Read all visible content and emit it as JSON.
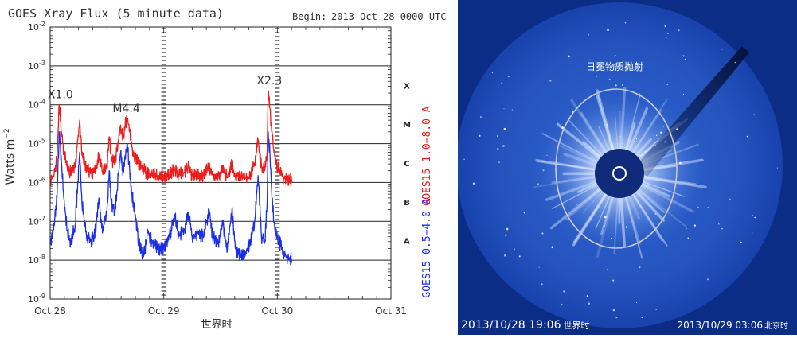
{
  "chart_data": [
    {
      "type": "line",
      "title": "GOES Xray Flux (5 minute data)",
      "begin_label": "Begin:",
      "begin_value": "2013 Oct 28 0000 UTC",
      "xlabel": "世界时",
      "ylabel": "Watts m",
      "ylabel_exponent": "−2",
      "yscale": "log",
      "ylim": [
        1e-09,
        0.01
      ],
      "xlim": [
        0,
        3
      ],
      "x_ticks": [
        {
          "value": 0,
          "label": "Oct 28"
        },
        {
          "value": 1,
          "label": "Oct 29"
        },
        {
          "value": 2,
          "label": "Oct 30"
        },
        {
          "value": 3,
          "label": "Oct 31"
        }
      ],
      "y_ticks": [
        {
          "exp": -9,
          "label": "10",
          "sup": "-9"
        },
        {
          "exp": -8,
          "label": "10",
          "sup": "-8"
        },
        {
          "exp": -7,
          "label": "10",
          "sup": "-7"
        },
        {
          "exp": -6,
          "label": "10",
          "sup": "-6"
        },
        {
          "exp": -5,
          "label": "10",
          "sup": "-5"
        },
        {
          "exp": -4,
          "label": "10",
          "sup": "-4"
        },
        {
          "exp": -3,
          "label": "10",
          "sup": "-3"
        },
        {
          "exp": -2,
          "label": "10",
          "sup": "-2"
        }
      ],
      "flare_classes": [
        {
          "label": "X",
          "exp": -3.5
        },
        {
          "label": "M",
          "exp": -4.5
        },
        {
          "label": "C",
          "exp": -5.5
        },
        {
          "label": "B",
          "exp": -6.5
        },
        {
          "label": "A",
          "exp": -7.5
        }
      ],
      "grid": true,
      "annotations": [
        {
          "text": "X1.0",
          "x": 0.09,
          "y": 0.0001
        },
        {
          "text": "M4.4",
          "x": 0.67,
          "y": 4.4e-05
        },
        {
          "text": "X2.3",
          "x": 1.93,
          "y": 0.00023
        }
      ],
      "series": [
        {
          "name": "GOES15 1.0−8.0 A",
          "color": "#ee1c1c",
          "points": [
            [
              0.0,
              1.2e-06
            ],
            [
              0.03,
              1.5e-06
            ],
            [
              0.06,
              4e-06
            ],
            [
              0.08,
              0.0001
            ],
            [
              0.1,
              2e-05
            ],
            [
              0.12,
              6e-06
            ],
            [
              0.15,
              2.5e-06
            ],
            [
              0.18,
              1.8e-06
            ],
            [
              0.22,
              2.5e-06
            ],
            [
              0.26,
              4e-05
            ],
            [
              0.28,
              5e-06
            ],
            [
              0.32,
              2.2e-06
            ],
            [
              0.36,
              1.8e-06
            ],
            [
              0.4,
              2e-06
            ],
            [
              0.43,
              5e-06
            ],
            [
              0.46,
              2e-06
            ],
            [
              0.5,
              2.5e-06
            ],
            [
              0.52,
              1.5e-05
            ],
            [
              0.54,
              4e-06
            ],
            [
              0.57,
              3e-06
            ],
            [
              0.6,
              1.2e-05
            ],
            [
              0.62,
              3e-05
            ],
            [
              0.64,
              1.2e-05
            ],
            [
              0.66,
              3e-05
            ],
            [
              0.68,
              4.4e-05
            ],
            [
              0.7,
              2e-05
            ],
            [
              0.72,
              8e-06
            ],
            [
              0.75,
              4e-06
            ],
            [
              0.8,
              2.5e-06
            ],
            [
              0.85,
              1.8e-06
            ],
            [
              0.9,
              1.6e-06
            ],
            [
              0.95,
              1.5e-06
            ],
            [
              1.0,
              1.4e-06
            ],
            [
              1.05,
              1.6e-06
            ],
            [
              1.1,
              2.2e-06
            ],
            [
              1.13,
              1.6e-06
            ],
            [
              1.18,
              1.8e-06
            ],
            [
              1.22,
              2.4e-06
            ],
            [
              1.25,
              1.5e-06
            ],
            [
              1.3,
              1.6e-06
            ],
            [
              1.35,
              1.5e-06
            ],
            [
              1.4,
              2.5e-06
            ],
            [
              1.43,
              1.6e-06
            ],
            [
              1.48,
              1.5e-06
            ],
            [
              1.52,
              2e-06
            ],
            [
              1.56,
              1.4e-06
            ],
            [
              1.6,
              2.8e-06
            ],
            [
              1.63,
              1.5e-06
            ],
            [
              1.68,
              1.4e-06
            ],
            [
              1.72,
              1.3e-06
            ],
            [
              1.76,
              1.4e-06
            ],
            [
              1.8,
              3e-06
            ],
            [
              1.83,
              1.2e-05
            ],
            [
              1.86,
              2.5e-06
            ],
            [
              1.89,
              2e-06
            ],
            [
              1.91,
              6e-06
            ],
            [
              1.92,
              0.00023
            ],
            [
              1.935,
              8e-05
            ],
            [
              1.95,
              2e-05
            ],
            [
              1.97,
              6e-06
            ],
            [
              2.0,
              2.5e-06
            ],
            [
              2.04,
              1.5e-06
            ],
            [
              2.08,
              1.2e-06
            ],
            [
              2.13,
              1.1e-06
            ]
          ]
        },
        {
          "name": "GOES15 0.5−4.0 A",
          "color": "#1c2ee8",
          "points": [
            [
              0.0,
              2.5e-08
            ],
            [
              0.03,
              6e-08
            ],
            [
              0.06,
              4e-07
            ],
            [
              0.08,
              2e-05
            ],
            [
              0.1,
              3e-06
            ],
            [
              0.12,
              4e-07
            ],
            [
              0.15,
              6e-08
            ],
            [
              0.18,
              3e-08
            ],
            [
              0.22,
              8e-08
            ],
            [
              0.26,
              6e-06
            ],
            [
              0.28,
              3e-07
            ],
            [
              0.32,
              4e-08
            ],
            [
              0.36,
              3e-08
            ],
            [
              0.4,
              6e-08
            ],
            [
              0.43,
              4e-07
            ],
            [
              0.46,
              5e-08
            ],
            [
              0.5,
              2e-07
            ],
            [
              0.52,
              2e-06
            ],
            [
              0.54,
              3e-07
            ],
            [
              0.57,
              1.5e-07
            ],
            [
              0.6,
              1.5e-06
            ],
            [
              0.62,
              6e-06
            ],
            [
              0.64,
              1.5e-06
            ],
            [
              0.66,
              5e-06
            ],
            [
              0.68,
              1e-05
            ],
            [
              0.7,
              2e-06
            ],
            [
              0.72,
              5e-07
            ],
            [
              0.75,
              1.5e-07
            ],
            [
              0.78,
              3e-08
            ],
            [
              0.82,
              1.2e-08
            ],
            [
              0.86,
              5e-08
            ],
            [
              0.9,
              3e-08
            ],
            [
              0.95,
              2e-08
            ],
            [
              1.0,
              2e-08
            ],
            [
              1.05,
              4e-08
            ],
            [
              1.1,
              1.5e-07
            ],
            [
              1.13,
              4e-08
            ],
            [
              1.18,
              6e-08
            ],
            [
              1.22,
              1.5e-07
            ],
            [
              1.25,
              4e-08
            ],
            [
              1.3,
              5e-08
            ],
            [
              1.35,
              4e-08
            ],
            [
              1.4,
              2e-07
            ],
            [
              1.43,
              4e-08
            ],
            [
              1.48,
              3e-08
            ],
            [
              1.52,
              8e-08
            ],
            [
              1.56,
              2e-08
            ],
            [
              1.6,
              2e-07
            ],
            [
              1.63,
              2e-08
            ],
            [
              1.68,
              1.2e-08
            ],
            [
              1.72,
              1.5e-08
            ],
            [
              1.76,
              3e-08
            ],
            [
              1.8,
              1e-07
            ],
            [
              1.83,
              1.5e-06
            ],
            [
              1.86,
              4e-08
            ],
            [
              1.89,
              3e-08
            ],
            [
              1.91,
              3e-07
            ],
            [
              1.92,
              2e-05
            ],
            [
              1.935,
              5e-06
            ],
            [
              1.95,
              6e-07
            ],
            [
              1.97,
              1e-07
            ],
            [
              2.0,
              4e-08
            ],
            [
              2.04,
              2e-08
            ],
            [
              2.08,
              1.2e-08
            ],
            [
              2.13,
              1e-08
            ]
          ]
        }
      ]
    }
  ],
  "cme_image": {
    "cme_label": "日冕物质抛射",
    "timestamp_left": "2013/10/28  19:06",
    "timestamp_left_suffix": "世界时",
    "timestamp_right": "2013/10/29 03:06",
    "timestamp_right_suffix": "北京时"
  }
}
